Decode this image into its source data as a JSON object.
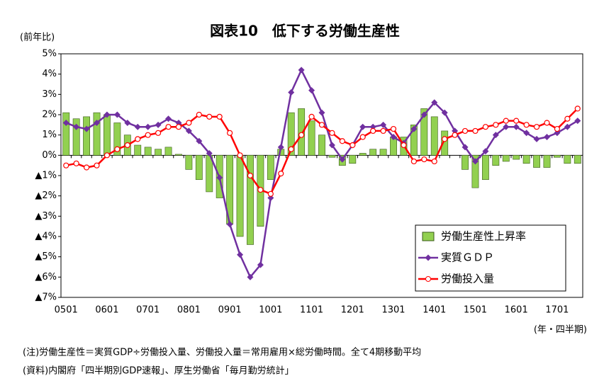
{
  "chart_data": {
    "type": "bar_line",
    "title": "図表10　低下する労働生産性",
    "y_label": "(前年比)",
    "x_label": "(年・四半期)",
    "notes": [
      "(注)労働生産性＝実質GDP÷労働投入量、労働投入量＝常用雇用×総労働時間。全て4期移動平均",
      "(資料)内閣府「四半期別GDP速報」、厚生労働省「毎月勤労統計」"
    ],
    "categories": [
      "0501",
      null,
      null,
      null,
      "0601",
      null,
      null,
      null,
      "0701",
      null,
      null,
      null,
      "0801",
      null,
      null,
      null,
      "0901",
      null,
      null,
      null,
      "1001",
      null,
      null,
      null,
      "1101",
      null,
      null,
      null,
      "1201",
      null,
      null,
      null,
      "1301",
      null,
      null,
      null,
      "1401",
      null,
      null,
      null,
      "1501",
      null,
      null,
      null,
      "1601",
      null,
      null,
      null,
      "1701",
      null,
      null
    ],
    "series": [
      {
        "name": "労働生産性上昇率",
        "type": "bar",
        "color": "#92d050",
        "values": [
          2.1,
          1.8,
          1.9,
          2.1,
          2.0,
          1.6,
          1.0,
          0.5,
          0.4,
          0.3,
          0.4,
          0.05,
          -0.7,
          -1.2,
          -1.8,
          -2.1,
          -3.4,
          -4.0,
          -4.4,
          -3.5,
          -1.2,
          0.3,
          2.1,
          2.3,
          1.7,
          1.0,
          -0.1,
          -0.5,
          -0.4,
          0.1,
          0.3,
          0.3,
          0.9,
          0.9,
          1.5,
          2.3,
          1.9,
          1.2,
          0.0,
          -0.7,
          -1.6,
          -1.2,
          -0.5,
          -0.3,
          -0.2,
          -0.4,
          -0.6,
          -0.6,
          -0.1,
          -0.4,
          -0.4
        ]
      },
      {
        "name": "実質ＧＤＰ",
        "type": "line",
        "marker": "diamond",
        "color": "#7030a0",
        "values": [
          1.6,
          1.4,
          1.3,
          1.6,
          2.0,
          2.0,
          1.6,
          1.4,
          1.4,
          1.5,
          1.8,
          1.6,
          1.2,
          0.7,
          0.1,
          -1.1,
          -3.4,
          -4.9,
          -6.0,
          -5.4,
          -2.1,
          0.4,
          3.1,
          4.2,
          3.2,
          2.1,
          0.5,
          -0.2,
          0.5,
          1.4,
          1.4,
          1.5,
          0.9,
          0.6,
          1.3,
          2.0,
          2.6,
          2.1,
          1.2,
          0.4,
          -0.3,
          0.2,
          1.0,
          1.4,
          1.4,
          1.1,
          0.8,
          0.9,
          1.1,
          1.4,
          1.7
        ]
      },
      {
        "name": "労働投入量",
        "type": "line",
        "marker": "circle",
        "color": "#ff0000",
        "values": [
          -0.5,
          -0.4,
          -0.6,
          -0.5,
          0.0,
          0.3,
          0.5,
          0.8,
          1.0,
          1.1,
          1.4,
          1.4,
          1.6,
          2.0,
          1.9,
          1.9,
          1.1,
          0.0,
          -1.0,
          -1.7,
          -1.9,
          -0.9,
          0.3,
          1.0,
          1.9,
          1.5,
          1.1,
          0.7,
          0.5,
          0.9,
          1.2,
          1.2,
          1.3,
          0.5,
          -0.3,
          -0.2,
          -0.3,
          0.8,
          1.0,
          1.2,
          1.2,
          1.4,
          1.5,
          1.7,
          1.7,
          1.5,
          1.4,
          1.6,
          1.3,
          1.8,
          2.3
        ]
      }
    ],
    "ylim": [
      -7,
      5
    ],
    "yticks": [
      {
        "value": 5,
        "label": "5%"
      },
      {
        "value": 4,
        "label": "4%"
      },
      {
        "value": 3,
        "label": "3%"
      },
      {
        "value": 2,
        "label": "2%"
      },
      {
        "value": 1,
        "label": "1%"
      },
      {
        "value": 0,
        "label": "0%"
      },
      {
        "value": -1,
        "label": "▲1%"
      },
      {
        "value": -2,
        "label": "▲2%"
      },
      {
        "value": -3,
        "label": "▲3%"
      },
      {
        "value": -4,
        "label": "▲4%"
      },
      {
        "value": -5,
        "label": "▲5%"
      },
      {
        "value": -6,
        "label": "▲6%"
      },
      {
        "value": -7,
        "label": "▲7%"
      }
    ],
    "legend": "lower right"
  }
}
